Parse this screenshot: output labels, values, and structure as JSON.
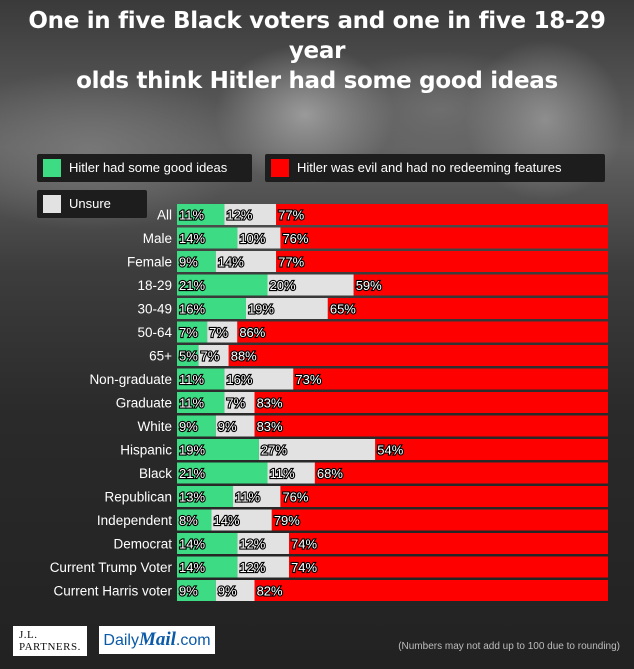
{
  "title_line1": "One in five Black voters and one in five 18-29 year",
  "title_line2": "olds think Hitler  had some good ideas",
  "legend": {
    "good": "Hitler had some good ideas",
    "evil": "Hitler was evil and had no redeeming features",
    "unsure": "Unsure"
  },
  "colors": {
    "good": "#3ddc84",
    "unsure": "#e2e2e2",
    "evil": "#ff0000"
  },
  "chart_data": {
    "type": "bar",
    "orientation": "horizontal",
    "stacked": true,
    "categories": [
      "All",
      "Male",
      "Female",
      "18-29",
      "30-49",
      "50-64",
      "65+",
      "Non-graduate",
      "Graduate",
      "White",
      "Hispanic",
      "Black",
      "Republican",
      "Independent",
      "Democrat",
      "Current Trump Voter",
      "Current Harris voter"
    ],
    "series": [
      {
        "name": "Hitler had some good ideas",
        "values": [
          11,
          14,
          9,
          21,
          16,
          7,
          5,
          11,
          11,
          9,
          19,
          21,
          13,
          8,
          14,
          14,
          9
        ],
        "labels": [
          "11%",
          "14%",
          "9%",
          "21%",
          "16%",
          "7%",
          "5%",
          "11%",
          "11%",
          "9%",
          "19%",
          "21%",
          "13%",
          "8%",
          "14%",
          "14%",
          "9%"
        ]
      },
      {
        "name": "Unsure",
        "values": [
          12,
          10,
          14,
          20,
          19,
          7,
          7,
          16,
          7,
          9,
          27,
          11,
          11,
          14,
          12,
          12,
          9
        ],
        "labels": [
          "12%",
          "10%",
          "14%",
          "20%",
          "19%",
          "7%",
          "7%",
          "16%",
          "7%",
          "9%",
          "27%",
          "11%",
          "11%",
          "14%",
          "12%",
          "12%",
          "9%"
        ]
      },
      {
        "name": "Hitler was evil and had no redeeming features",
        "values": [
          77,
          76,
          77,
          59,
          65,
          86,
          88,
          73,
          83,
          83,
          54,
          68,
          76,
          79,
          74,
          74,
          82
        ],
        "labels": [
          "77%",
          "76%",
          "77%",
          "59%",
          "65%",
          "86%",
          "88%",
          "73%",
          "83%",
          "83%",
          "54%",
          "68%",
          "76%",
          "79%",
          "74%",
          "74%",
          "82%"
        ]
      }
    ],
    "xlim": [
      0,
      100
    ]
  },
  "footer": {
    "brand1_line1": "J.L.",
    "brand1_line2": "PARTNERS.",
    "brand2_prefix": "Daily",
    "brand2_bold": "Mail",
    "brand2_suffix": ".com",
    "note": "(Numbers may not add up to 100 due to rounding)"
  }
}
